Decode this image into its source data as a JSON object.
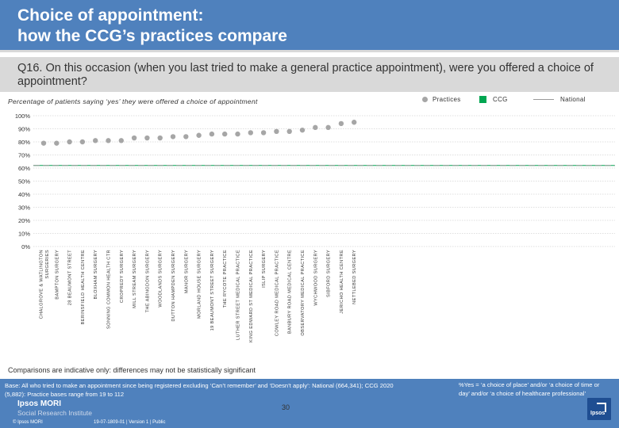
{
  "header": {
    "title_line1": "Choice of appointment:",
    "title_line2": "how the CCG’s practices compare",
    "question": "Q16. On this occasion (when you last tried to make a general practice appointment), were you offered a choice of appointment?"
  },
  "colors": {
    "accent": "#4f81bd",
    "practice_dot": "#a6a6a6",
    "ccg": "#00a651",
    "national": "#999999",
    "gridline": "#bfbfbf"
  },
  "chart_data": {
    "type": "scatter",
    "title": "Percentage of patients saying ‘yes’ they were offered a choice of appointment",
    "xlabel": "",
    "ylabel": "",
    "ylim": [
      0,
      100
    ],
    "grid": true,
    "legend_position": "top-right",
    "y_ticks": [
      {
        "value": 0,
        "label": "0%"
      },
      {
        "value": 10,
        "label": "10%"
      },
      {
        "value": 20,
        "label": "20%"
      },
      {
        "value": 30,
        "label": "30%"
      },
      {
        "value": 40,
        "label": "40%"
      },
      {
        "value": 50,
        "label": "50%"
      },
      {
        "value": 60,
        "label": "60%"
      },
      {
        "value": 70,
        "label": "70%"
      },
      {
        "value": 80,
        "label": "80%"
      },
      {
        "value": 90,
        "label": "90%"
      },
      {
        "value": 100,
        "label": "100%"
      }
    ],
    "categories": [
      "CHALGROVE & WATLINGTON SURGERIES",
      "BAMPTON SURGERY",
      "28 BEAUMONT STREET",
      "BERINSFIELD HEALTH CENTRE",
      "BLOXHAM SURGERY",
      "SONNING COMMON HEALTH CTR",
      "CROPREDY SURGERY",
      "MILL STREAM SURGERY",
      "THE ABINGDON SURGERY",
      "WOODLANDS SURGERY",
      "DUTTON HAMPDEN SURGERY",
      "MANOR SURGERY",
      "MORLAND HOUSE SURGERY",
      "19 BEAUMONT STREET SURGERY",
      "THE RYCOTE PRACTICE",
      "LUTHER STREET MEDICAL PRACTICE",
      "KING EDWARD ST MEDICAL PRACTICE",
      "ISLIP SURGERY",
      "COWLEY ROAD MEDICAL PRACTICE",
      "BANBURY ROAD MEDICAL CENTRE",
      "OBSERVATORY MEDICAL PRACTICE",
      "WYCHWOOD SURGERY",
      "SIBFORD SURGERY",
      "JERICHO HEALTH CENTRE",
      "NETTLEBED SURGERY"
    ],
    "series": [
      {
        "name": "Practices",
        "marker": "dot",
        "values": [
          79,
          79,
          80,
          80,
          81,
          81,
          81,
          83,
          83,
          83,
          84,
          84,
          85,
          86,
          86,
          86,
          87,
          87,
          88,
          88,
          89,
          91,
          91,
          94,
          95
        ]
      },
      {
        "name": "CCG",
        "marker": "line",
        "values": [
          62
        ]
      },
      {
        "name": "National",
        "marker": "dashed-line",
        "values": [
          62
        ]
      }
    ]
  },
  "legend": {
    "practices": "Practices",
    "ccg": "CCG",
    "national": "National"
  },
  "notes": {
    "comparisons": "Comparisons are indicative only: differences may not be statistically significant"
  },
  "footer": {
    "base_line1": "Base: All who tried to make an appointment since being registered excluding ‘Can’t remember’ and ‘Doesn’t apply’: National (664,341); CCG 2020",
    "base_line2": "(5,882): Practice bases range from 19 to 112",
    "definition_line1": "%Yes = ‘a choice of place’ and/or ‘a choice of time or",
    "definition_line2": "day’ and/or ‘a choice of healthcare professional’",
    "page_number": "30",
    "brand": "Ipsos MORI",
    "brand_sub": "Social Research Institute",
    "copyright": "© Ipsos MORI",
    "reference": "19-07-1809-01 | Version 1 | Public",
    "logo_text": "Ipsos"
  }
}
